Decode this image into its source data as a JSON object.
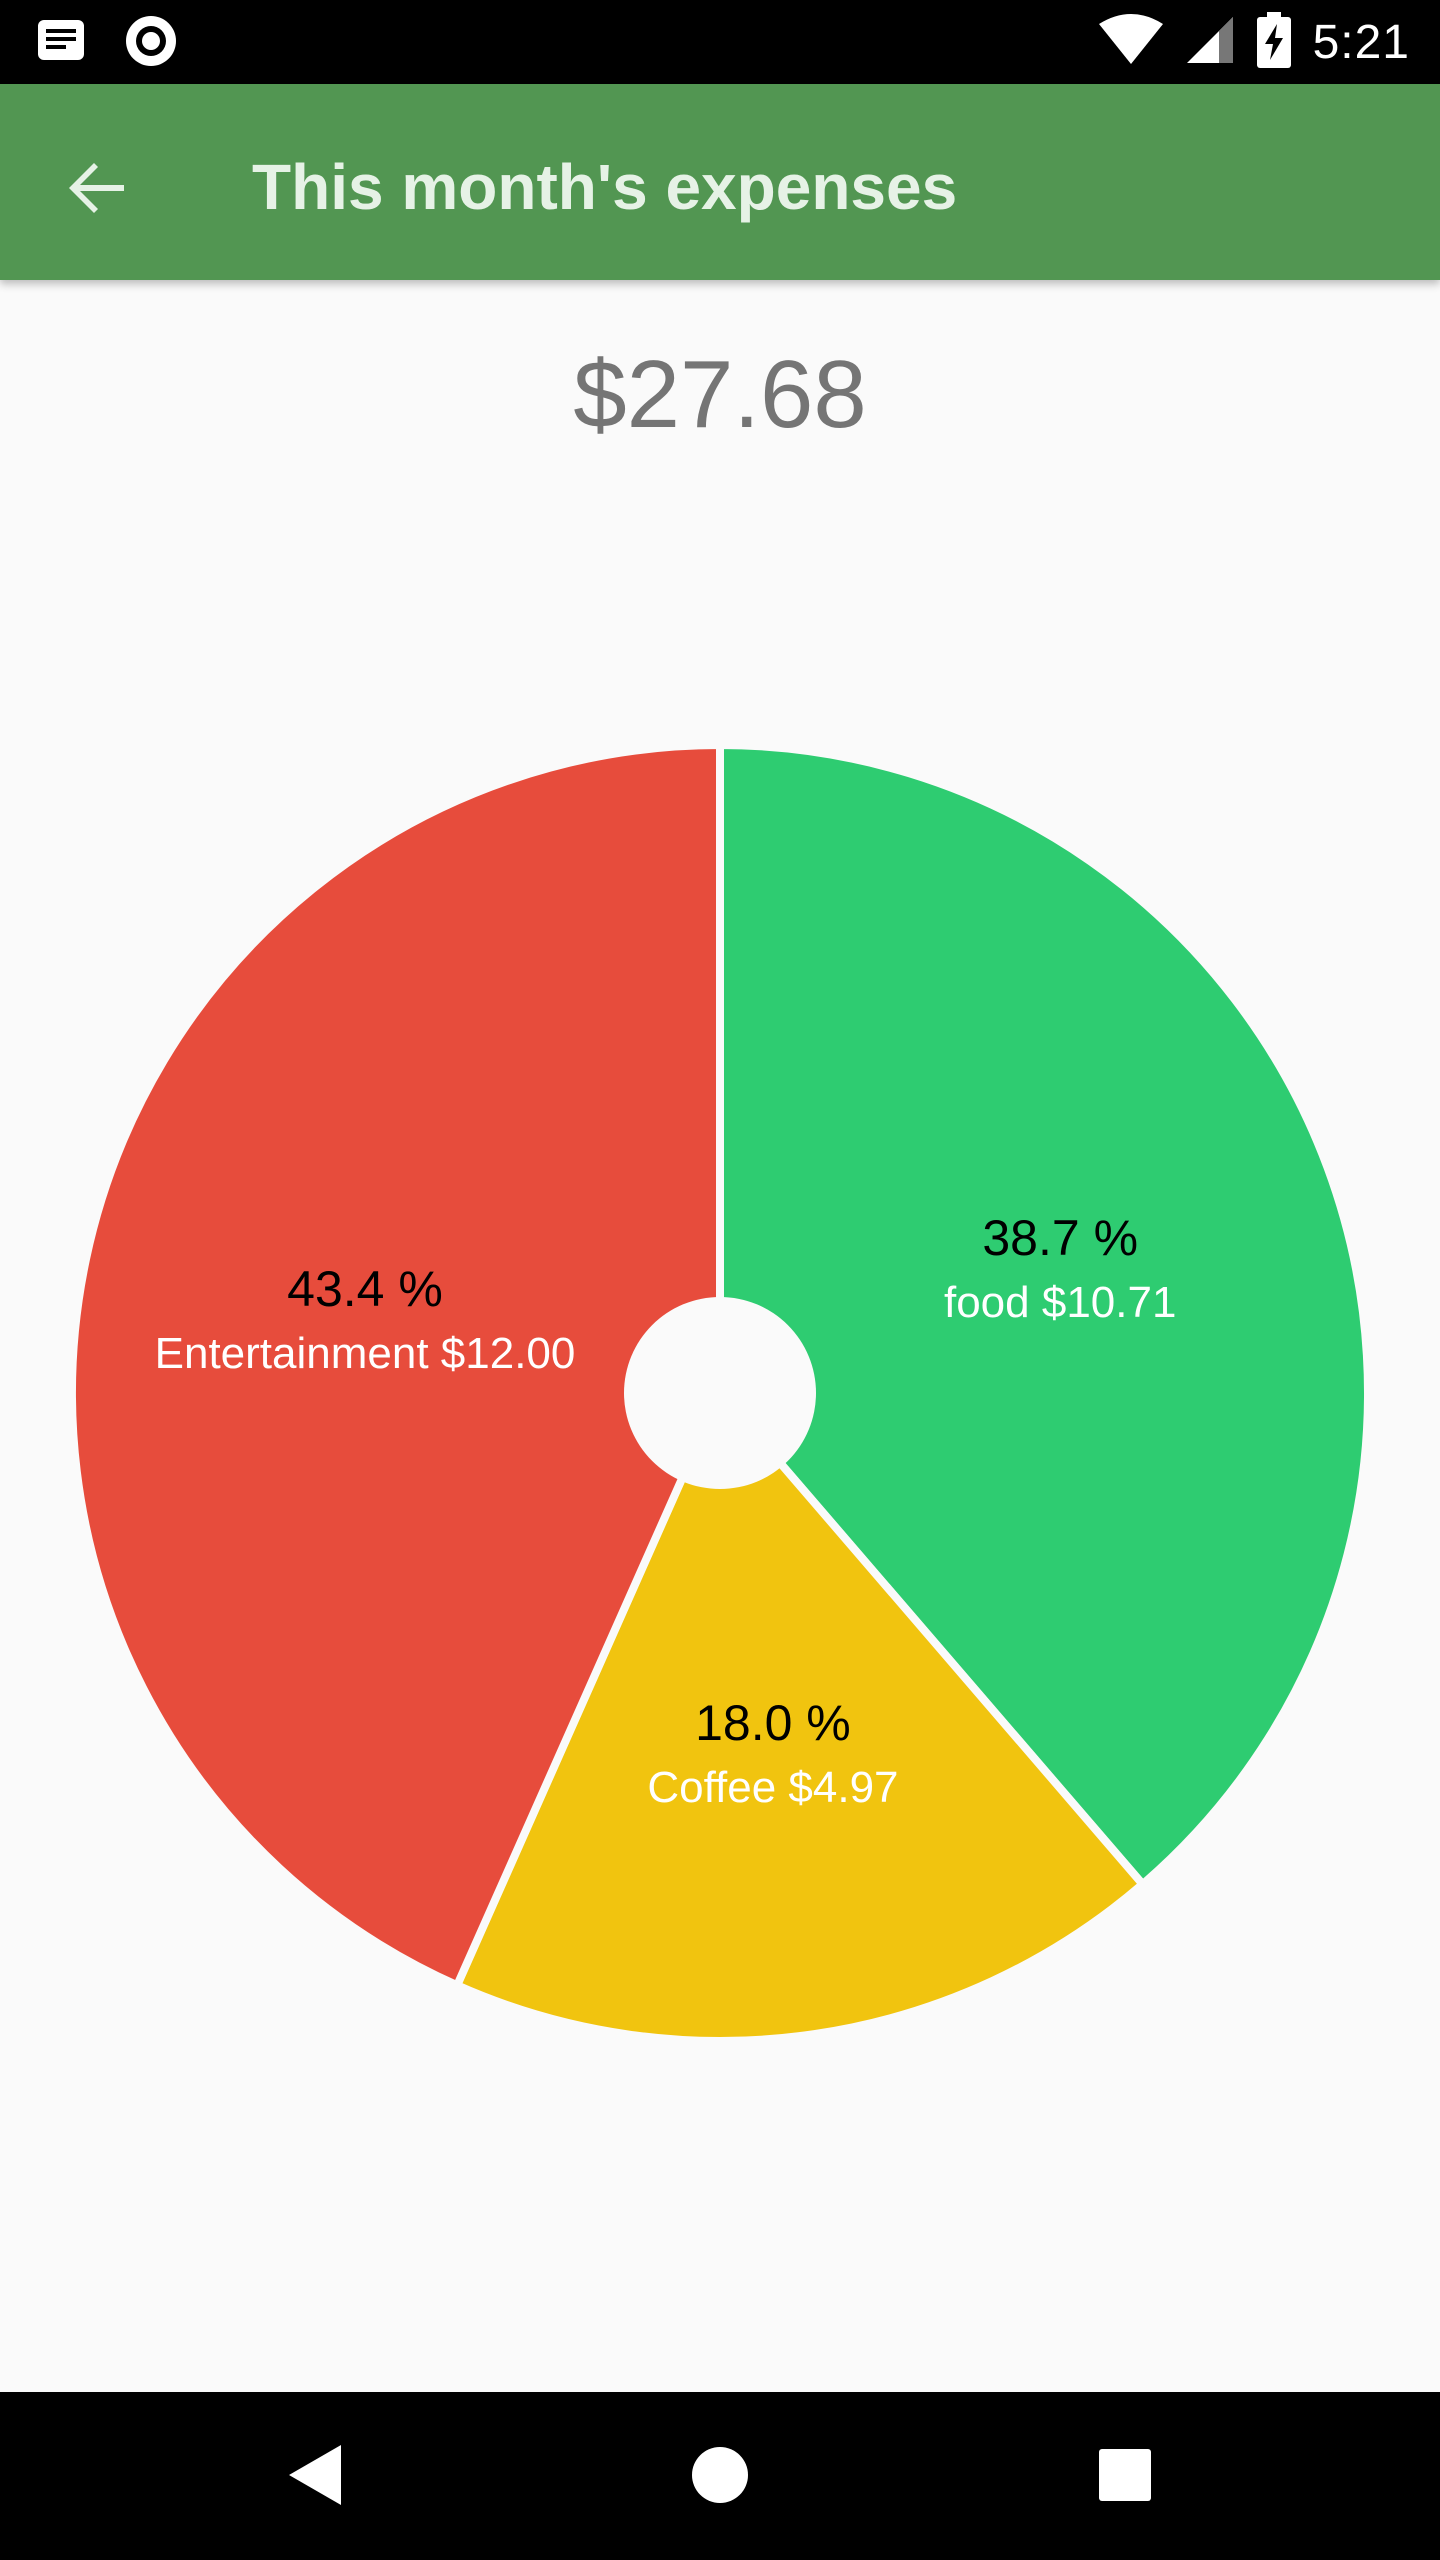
{
  "status_bar": {
    "time": "5:21",
    "icons": [
      "notification-icon",
      "record-icon",
      "wifi-icon",
      "signal-icon",
      "battery-charging-icon"
    ]
  },
  "app_bar": {
    "back_icon": "arrow-back-icon",
    "title": "This month's expenses",
    "color": "#529652"
  },
  "total": "$27.68",
  "chart_data": {
    "type": "pie",
    "total": 27.68,
    "hole": true,
    "slices": [
      {
        "label": "food",
        "amount_text": "$10.71",
        "value": 10.71,
        "percent": 38.7,
        "percent_text": "38.7 %",
        "color": "#2ecc71"
      },
      {
        "label": "Coffee",
        "amount_text": "$4.97",
        "value": 4.97,
        "percent": 18.0,
        "percent_text": "18.0 %",
        "color": "#f1c40f"
      },
      {
        "label": "Entertainment",
        "amount_text": "$12.00",
        "value": 12.0,
        "percent": 43.4,
        "percent_text": "43.4 %",
        "color": "#e74c3c"
      }
    ]
  },
  "nav_bar": {
    "buttons": [
      "back-nav-icon",
      "home-nav-icon",
      "recents-nav-icon"
    ]
  }
}
